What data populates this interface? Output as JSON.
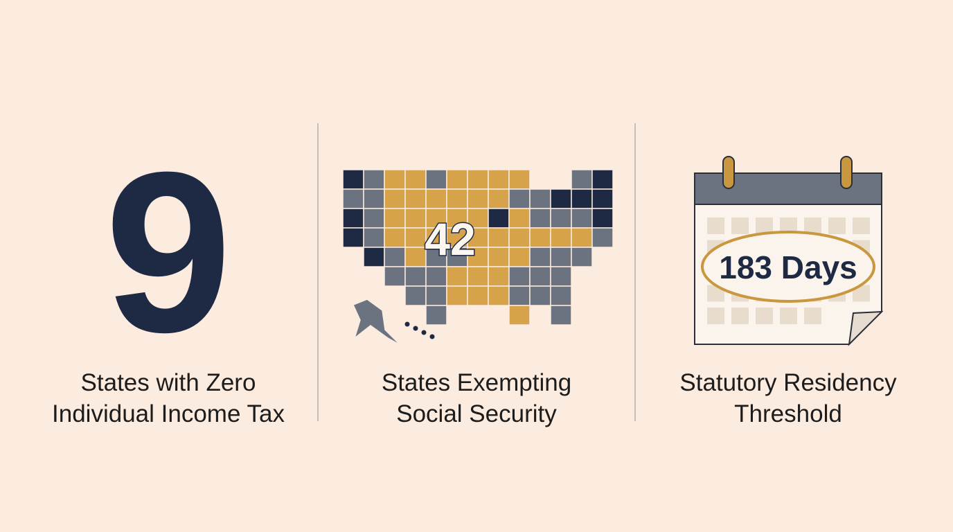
{
  "panels": [
    {
      "stat": "9",
      "label_lines": [
        "States with Zero",
        "Individual Income Tax"
      ]
    },
    {
      "stat": "42",
      "label_lines": [
        "States Exempting",
        "Social Security"
      ]
    },
    {
      "stat": "183 Days",
      "label_lines": [
        "Statutory Residency",
        "Threshold"
      ]
    }
  ]
}
